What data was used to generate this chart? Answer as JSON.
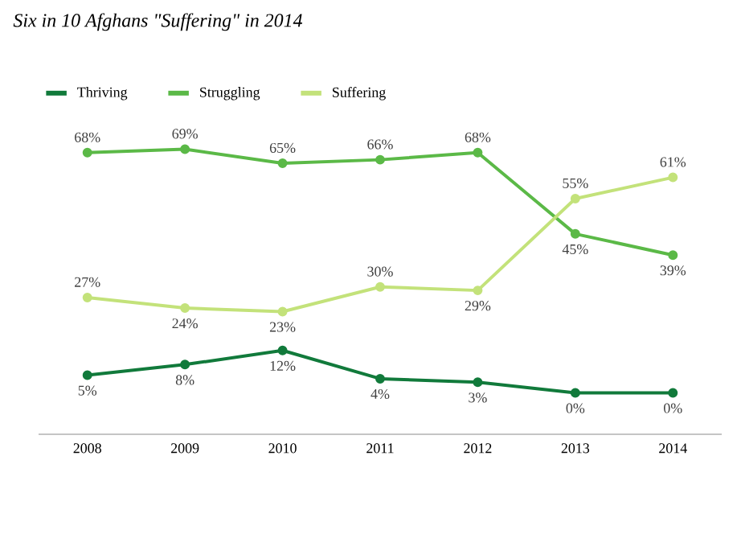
{
  "chart_data": {
    "type": "line",
    "title": "Six in 10 Afghans \"Suffering\" in 2014",
    "categories": [
      "2008",
      "2009",
      "2010",
      "2011",
      "2012",
      "2013",
      "2014"
    ],
    "series": [
      {
        "name": "Thriving",
        "color": "#117a3b",
        "values": [
          5,
          8,
          12,
          4,
          3,
          0,
          0
        ],
        "value_labels": [
          "5%",
          "8%",
          "12%",
          "4%",
          "3%",
          "0%",
          "0%"
        ]
      },
      {
        "name": "Struggling",
        "color": "#5bb947",
        "values": [
          68,
          69,
          65,
          66,
          68,
          45,
          39
        ],
        "value_labels": [
          "68%",
          "69%",
          "65%",
          "66%",
          "68%",
          "45%",
          "39%"
        ]
      },
      {
        "name": "Suffering",
        "color": "#c3e27a",
        "values": [
          27,
          24,
          23,
          30,
          29,
          55,
          61
        ],
        "value_labels": [
          "27%",
          "24%",
          "23%",
          "30%",
          "29%",
          "55%",
          "61%"
        ]
      }
    ],
    "legend": "top left",
    "marker": "circle",
    "line_style": "solid"
  }
}
